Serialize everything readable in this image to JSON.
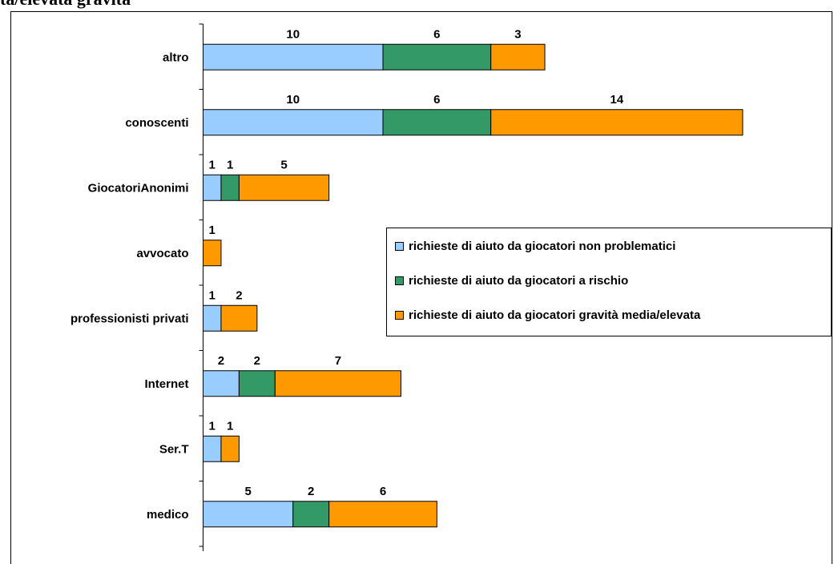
{
  "page": {
    "partial_title": "ta/elevata gravità"
  },
  "chart_data": {
    "type": "bar",
    "orientation": "horizontal",
    "stacked": true,
    "categories": [
      "altro",
      "conoscenti",
      "GiocatoriAnonimi",
      "avvocato",
      "professionisti privati",
      "Internet",
      "Ser.T",
      "medico"
    ],
    "series": [
      {
        "name": "richieste di aiuto da giocatori non problematici",
        "color": "#99ccff",
        "values": [
          10,
          10,
          1,
          0,
          1,
          2,
          1,
          5
        ]
      },
      {
        "name": "richieste di aiuto da giocatori a rischio",
        "color": "#339966",
        "values": [
          6,
          6,
          1,
          0,
          0,
          2,
          0,
          2
        ]
      },
      {
        "name": "richieste di aiuto da giocatori gravità media/elevata",
        "color": "#ff9900",
        "values": [
          3,
          14,
          5,
          1,
          2,
          7,
          1,
          6
        ]
      }
    ],
    "xlim": [
      0,
      30
    ],
    "grid": false,
    "legend_position": "center-right"
  }
}
